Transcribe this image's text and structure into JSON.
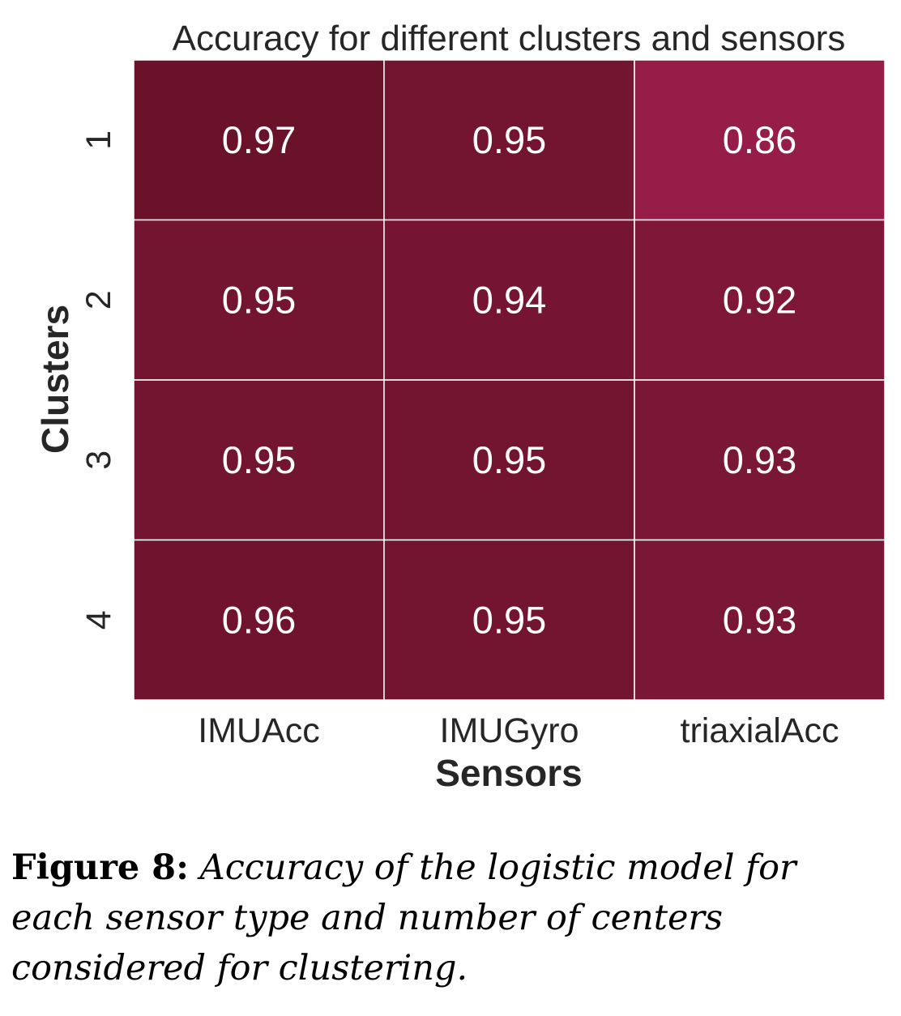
{
  "chart_data": {
    "type": "heatmap",
    "title": "Accuracy for different clusters and sensors",
    "xlabel": "Sensors",
    "ylabel": "Clusters",
    "x_categories": [
      "IMUAcc",
      "IMUGyro",
      "triaxialAcc"
    ],
    "y_categories": [
      "1",
      "2",
      "3",
      "4"
    ],
    "values": [
      [
        0.97,
        0.95,
        0.86
      ],
      [
        0.95,
        0.94,
        0.92
      ],
      [
        0.95,
        0.95,
        0.93
      ],
      [
        0.96,
        0.95,
        0.93
      ]
    ],
    "value_labels": [
      [
        "0.97",
        "0.95",
        "0.86"
      ],
      [
        "0.95",
        "0.94",
        "0.92"
      ],
      [
        "0.95",
        "0.95",
        "0.93"
      ],
      [
        "0.96",
        "0.95",
        "0.93"
      ]
    ],
    "colormap": {
      "low": "#951d48",
      "high": "#6b122b"
    },
    "colorbar": false,
    "grid_line_color": "#ffffff"
  },
  "caption": {
    "label": "Figure 8:",
    "text": "Accuracy of the logistic model for each sensor type and number of centers considered for clustering."
  }
}
